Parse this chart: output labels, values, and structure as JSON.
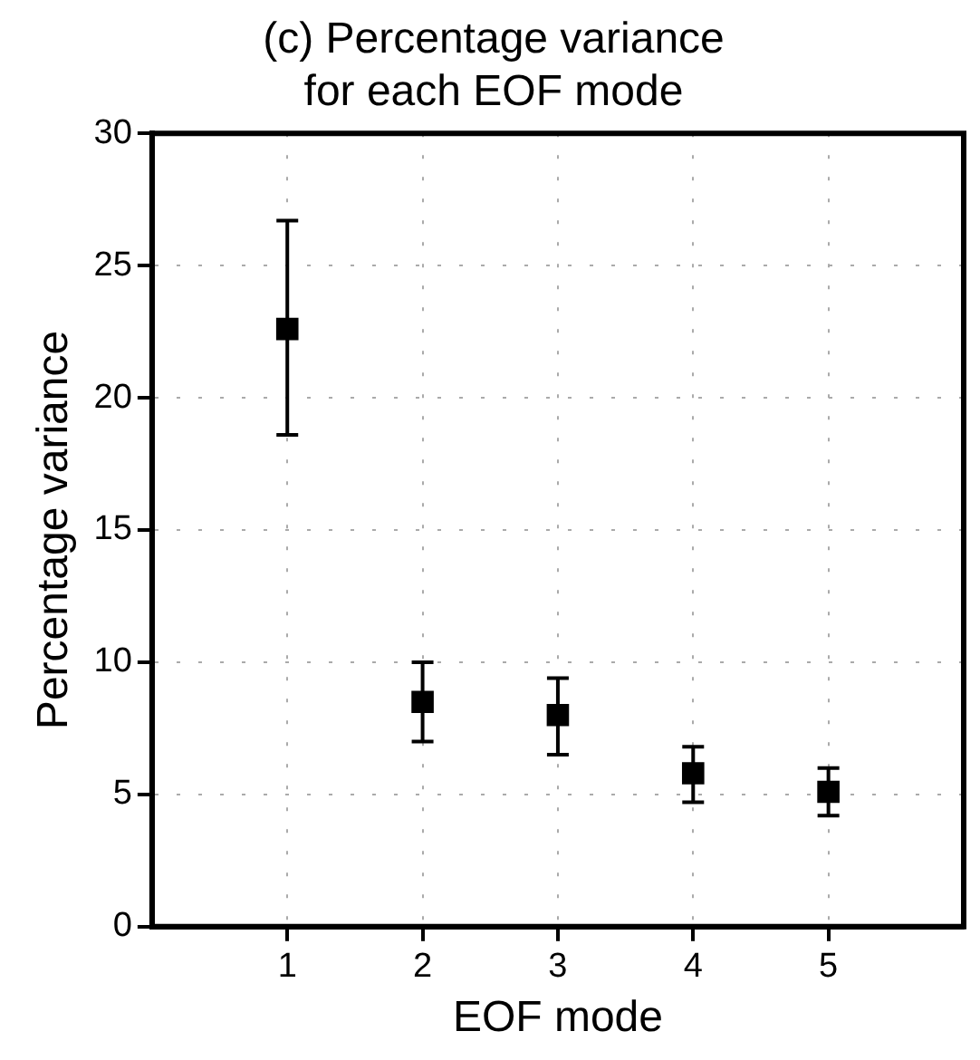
{
  "chart_data": {
    "type": "scatter",
    "title": "(c) Percentage variance\nfor each EOF mode",
    "xlabel": "EOF mode",
    "ylabel": "Percentage variance",
    "x": [
      1,
      2,
      3,
      4,
      5
    ],
    "series": [
      {
        "color": "#000000",
        "values": [
          22.6,
          8.5,
          8.0,
          5.8,
          5.1
        ],
        "errors": [
          [
            18.6,
            26.7
          ],
          [
            7.0,
            10.0
          ],
          [
            6.5,
            9.4
          ],
          [
            4.7,
            6.8
          ],
          [
            4.2,
            6.0
          ]
        ]
      }
    ],
    "xlim": [
      0,
      6
    ],
    "xticks": [
      1,
      2,
      3,
      4,
      5
    ],
    "ylim": [
      0,
      30
    ],
    "yticks": [
      0,
      5,
      10,
      15,
      20,
      25,
      30
    ],
    "grid": true,
    "marker": "square",
    "legend": false
  }
}
